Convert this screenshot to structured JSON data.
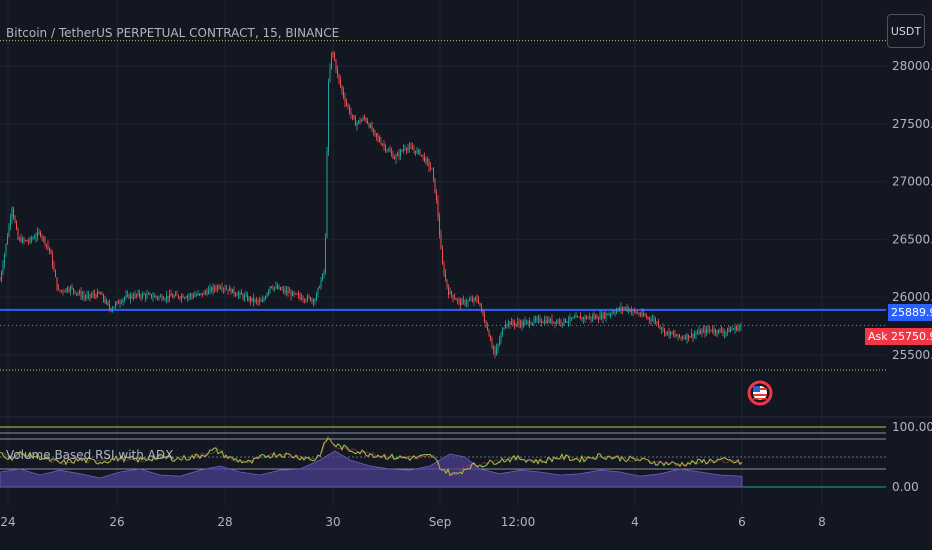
{
  "header": {
    "symbol": "Bitcoin / TetherUS PERPETUAL CONTRACT, 15, BINANCE"
  },
  "currency_button": "USDT",
  "indicator": {
    "title": "Volume Based RSI with ADX"
  },
  "price_tags": {
    "blue_price": "25889.9",
    "ask_label": "Ask",
    "ask_price": "25750.9"
  },
  "colors": {
    "up": "#26a69a",
    "down": "#ef5350",
    "blue_line": "#2962ff",
    "level_line": "#c9c34a",
    "rsi_line": "#9bd34b",
    "adx_fill": "#4b3f8f"
  },
  "chart_data": [
    {
      "type": "candlestick",
      "title": "Bitcoin / TetherUS PERPETUAL CONTRACT, 15, BINANCE",
      "ylim": [
        25250,
        28300
      ],
      "y_ticks": [
        "28000.0",
        "27500.0",
        "27000.0",
        "26500.0",
        "26000.0",
        "25500.0"
      ],
      "x_ticks": [
        "24",
        "26",
        "28",
        "30",
        "Sep",
        "12:00",
        "4",
        "6",
        "8"
      ],
      "horizontal_levels": [
        28220,
        25890,
        25755,
        25370
      ],
      "price_path": [
        [
          0,
          26150
        ],
        [
          5,
          26400
        ],
        [
          12,
          26780
        ],
        [
          18,
          26500
        ],
        [
          28,
          26480
        ],
        [
          40,
          26560
        ],
        [
          50,
          26400
        ],
        [
          58,
          26050
        ],
        [
          70,
          26080
        ],
        [
          85,
          26000
        ],
        [
          100,
          26030
        ],
        [
          110,
          25900
        ],
        [
          125,
          26000
        ],
        [
          140,
          26020
        ],
        [
          160,
          26000
        ],
        [
          180,
          26010
        ],
        [
          200,
          26020
        ],
        [
          220,
          26100
        ],
        [
          235,
          26040
        ],
        [
          250,
          25980
        ],
        [
          262,
          25950
        ],
        [
          270,
          26100
        ],
        [
          285,
          26050
        ],
        [
          300,
          26000
        ],
        [
          315,
          25980
        ],
        [
          325,
          26250
        ],
        [
          328,
          27800
        ],
        [
          332,
          28150
        ],
        [
          338,
          27900
        ],
        [
          345,
          27700
        ],
        [
          355,
          27500
        ],
        [
          365,
          27550
        ],
        [
          375,
          27400
        ],
        [
          385,
          27300
        ],
        [
          395,
          27200
        ],
        [
          405,
          27300
        ],
        [
          420,
          27250
        ],
        [
          432,
          27100
        ],
        [
          437,
          26800
        ],
        [
          442,
          26300
        ],
        [
          448,
          26050
        ],
        [
          460,
          25950
        ],
        [
          478,
          25980
        ],
        [
          490,
          25650
        ],
        [
          495,
          25500
        ],
        [
          505,
          25780
        ],
        [
          520,
          25770
        ],
        [
          540,
          25800
        ],
        [
          560,
          25790
        ],
        [
          580,
          25820
        ],
        [
          600,
          25830
        ],
        [
          615,
          25880
        ],
        [
          625,
          25910
        ],
        [
          640,
          25850
        ],
        [
          655,
          25800
        ],
        [
          665,
          25700
        ],
        [
          680,
          25650
        ],
        [
          695,
          25680
        ],
        [
          710,
          25720
        ],
        [
          725,
          25700
        ],
        [
          742,
          25750
        ]
      ]
    },
    {
      "type": "line",
      "title": "Volume Based RSI with ADX",
      "ylim": [
        0,
        100
      ],
      "y_ticks": [
        "100.00",
        "0.00"
      ],
      "rsi_path": [
        [
          0,
          58
        ],
        [
          10,
          48
        ],
        [
          20,
          55
        ],
        [
          40,
          50
        ],
        [
          60,
          40
        ],
        [
          80,
          45
        ],
        [
          100,
          42
        ],
        [
          120,
          48
        ],
        [
          140,
          45
        ],
        [
          160,
          50
        ],
        [
          180,
          47
        ],
        [
          200,
          52
        ],
        [
          215,
          62
        ],
        [
          230,
          48
        ],
        [
          250,
          40
        ],
        [
          265,
          52
        ],
        [
          280,
          55
        ],
        [
          300,
          50
        ],
        [
          315,
          45
        ],
        [
          322,
          60
        ],
        [
          327,
          82
        ],
        [
          335,
          70
        ],
        [
          350,
          62
        ],
        [
          370,
          55
        ],
        [
          390,
          50
        ],
        [
          410,
          48
        ],
        [
          432,
          52
        ],
        [
          442,
          30
        ],
        [
          455,
          20
        ],
        [
          470,
          35
        ],
        [
          485,
          38
        ],
        [
          500,
          45
        ],
        [
          520,
          48
        ],
        [
          540,
          42
        ],
        [
          560,
          50
        ],
        [
          580,
          46
        ],
        [
          600,
          52
        ],
        [
          620,
          48
        ],
        [
          640,
          45
        ],
        [
          660,
          40
        ],
        [
          680,
          38
        ],
        [
          700,
          42
        ],
        [
          720,
          45
        ],
        [
          742,
          40
        ]
      ],
      "adx_path": [
        [
          0,
          25
        ],
        [
          20,
          30
        ],
        [
          40,
          20
        ],
        [
          60,
          28
        ],
        [
          80,
          22
        ],
        [
          100,
          15
        ],
        [
          120,
          25
        ],
        [
          140,
          30
        ],
        [
          160,
          20
        ],
        [
          180,
          18
        ],
        [
          200,
          28
        ],
        [
          220,
          35
        ],
        [
          240,
          25
        ],
        [
          260,
          20
        ],
        [
          280,
          28
        ],
        [
          300,
          30
        ],
        [
          320,
          45
        ],
        [
          335,
          60
        ],
        [
          350,
          45
        ],
        [
          370,
          35
        ],
        [
          390,
          30
        ],
        [
          410,
          28
        ],
        [
          430,
          35
        ],
        [
          450,
          55
        ],
        [
          465,
          50
        ],
        [
          480,
          30
        ],
        [
          500,
          22
        ],
        [
          520,
          28
        ],
        [
          540,
          25
        ],
        [
          560,
          20
        ],
        [
          580,
          22
        ],
        [
          600,
          28
        ],
        [
          620,
          25
        ],
        [
          640,
          18
        ],
        [
          660,
          22
        ],
        [
          680,
          30
        ],
        [
          700,
          25
        ],
        [
          720,
          20
        ],
        [
          742,
          18
        ]
      ],
      "levels": [
        100,
        90,
        80,
        50,
        30,
        0
      ]
    }
  ]
}
